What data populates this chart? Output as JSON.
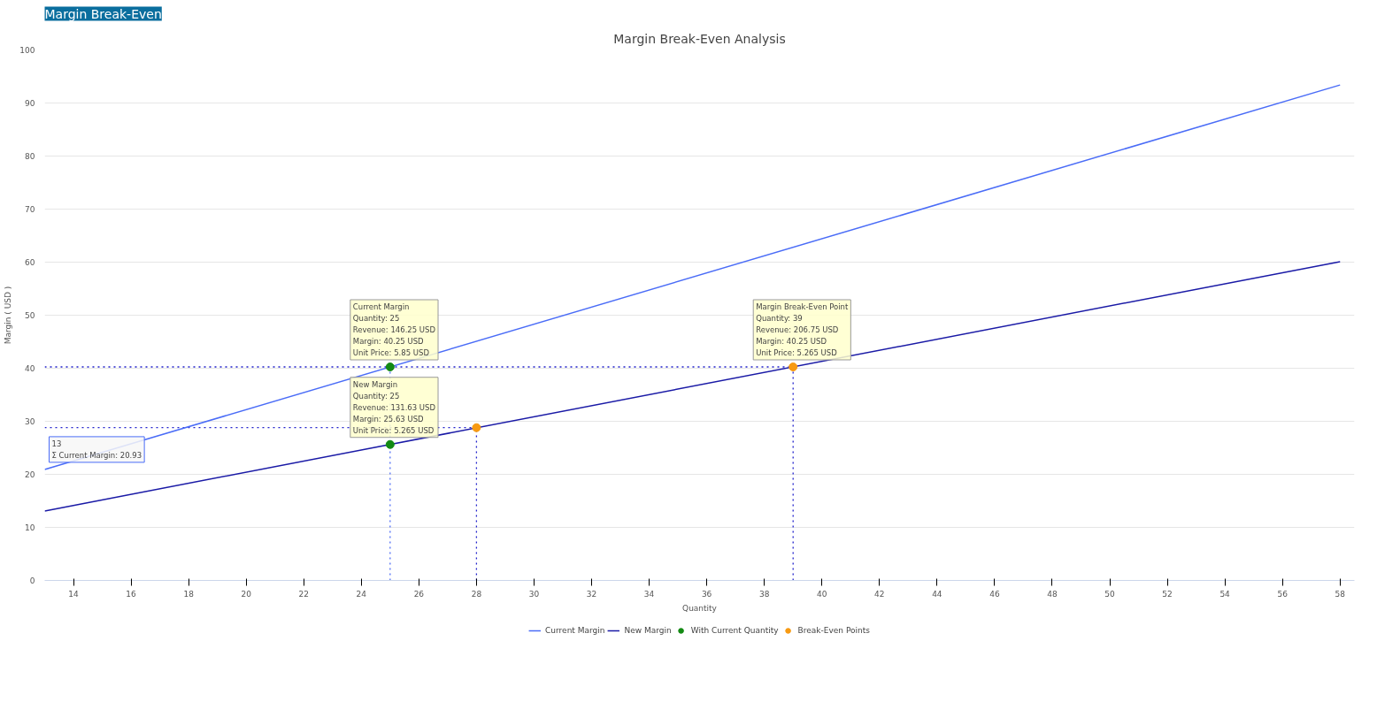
{
  "chart_data": {
    "type": "line",
    "title": "Margin Break-Even Analysis",
    "xlabel": "Quantity",
    "ylabel": "Margin ( USD )",
    "xlim": [
      13,
      58.5
    ],
    "xticks": [
      14,
      16,
      18,
      20,
      22,
      24,
      26,
      28,
      30,
      32,
      34,
      36,
      38,
      40,
      42,
      44,
      46,
      48,
      50,
      52,
      54,
      56,
      58
    ],
    "ylim": [
      0,
      100
    ],
    "yticks": [
      0,
      10,
      20,
      30,
      40,
      50,
      60,
      70,
      80,
      90,
      100
    ],
    "grid": "y",
    "legend": "bottom",
    "series": [
      {
        "line_style": "dotted",
        "color": "#2222cc",
        "x": [
          13,
          39
        ],
        "values": [
          40.25,
          40.25
        ]
      },
      {
        "line_style": "dotted",
        "color": "#2222cc",
        "x": [
          13,
          28
        ],
        "values": [
          28.8,
          28.8
        ]
      },
      {
        "line_style": "dotted",
        "color": "#4f6df5",
        "x": [
          25,
          25
        ],
        "values": [
          0,
          40.25
        ]
      },
      {
        "line_style": "dotted",
        "color": "#2222cc",
        "x": [
          28,
          28
        ],
        "values": [
          0,
          28.8
        ]
      },
      {
        "line_style": "dotted",
        "color": "#2222cc",
        "x": [
          39,
          39
        ],
        "values": [
          0,
          40.25
        ]
      },
      {
        "name": "Current Margin",
        "line_style": "solid",
        "color": "#4a6cf7",
        "x": [
          13,
          58
        ],
        "values": [
          20.93,
          93.4
        ]
      },
      {
        "name": "New Margin",
        "line_style": "solid",
        "color": "#1a1aa6",
        "x": [
          13,
          58
        ],
        "values": [
          13.1,
          60.1
        ]
      },
      {
        "name": "With Current Quantity",
        "type": "scatter",
        "marker": "circle",
        "color": "#138a13",
        "x": [
          25,
          25
        ],
        "values": [
          40.25,
          25.63
        ]
      },
      {
        "name": "Break-Even Points",
        "type": "scatter",
        "marker": "circle",
        "color": "#f79a12",
        "x": [
          28,
          39
        ],
        "values": [
          28.8,
          40.25
        ]
      }
    ],
    "annotations": [
      "Margin Break-Even",
      {
        "text": "Current Margin\nQuantity: 25\nRevenue: 146.25 USD\nMargin: 40.25 USD\nUnit Price: 5.85 USD",
        "x": 25,
        "y": 40.25
      },
      {
        "text": "New Margin\nQuantity: 25\nRevenue: 131.63 USD\nMargin: 25.63 USD\nUnit Price: 5.265 USD",
        "x": 25,
        "y": 25.63
      },
      {
        "text": "Margin Break-Even Point\nQuantity: 39\nRevenue: 206.75 USD\nMargin: 40.25 USD\nUnit Price: 5.265 USD",
        "x": 39,
        "y": 40.25
      },
      {
        "text": "13\nΣ Current Margin: 20.93",
        "x": 13,
        "y": 20.93
      }
    ]
  }
}
